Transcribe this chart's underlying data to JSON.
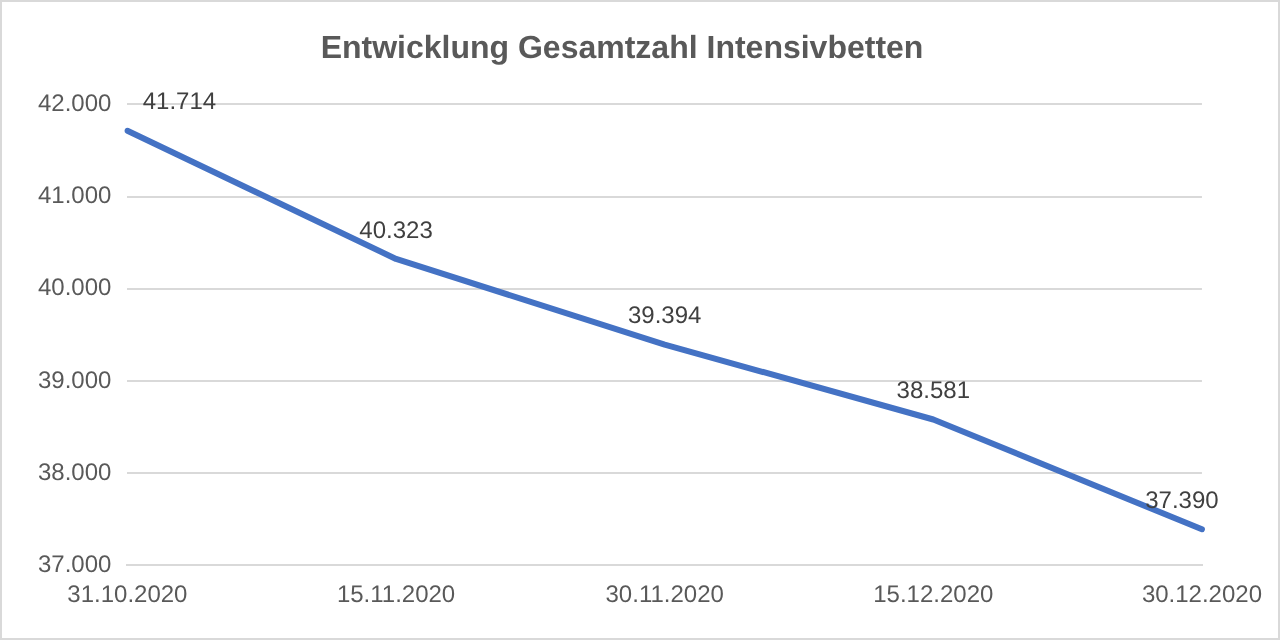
{
  "chart_data": {
    "type": "line",
    "title": "Entwicklung Gesamtzahl Intensivbetten",
    "categories": [
      "31.10.2020",
      "15.11.2020",
      "30.11.2020",
      "15.12.2020",
      "30.12.2020"
    ],
    "values": [
      41714,
      40323,
      39394,
      38581,
      37390
    ],
    "value_labels": [
      "41.714",
      "40.323",
      "39.394",
      "38.581",
      "37.390"
    ],
    "color": "#4472c4",
    "ylim": [
      37000,
      42000
    ],
    "yticks": [
      {
        "value": 37000,
        "label": "37.000"
      },
      {
        "value": 38000,
        "label": "38.000"
      },
      {
        "value": 39000,
        "label": "39.000"
      },
      {
        "value": 40000,
        "label": "40.000"
      },
      {
        "value": 41000,
        "label": "41.000"
      },
      {
        "value": 42000,
        "label": "42.000"
      }
    ],
    "grid": "y",
    "legend": false,
    "marker": "none",
    "line_style": "solid"
  }
}
